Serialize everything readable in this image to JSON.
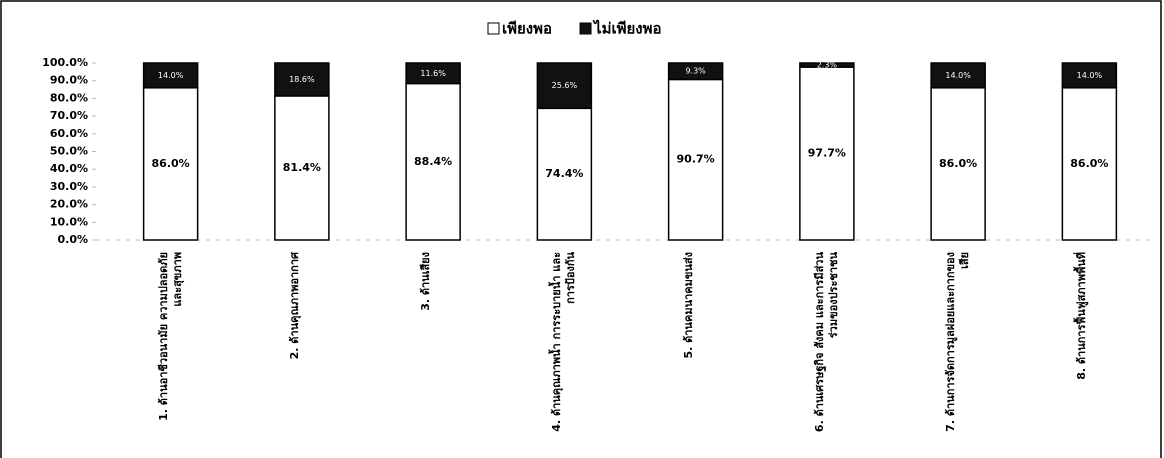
{
  "chart_data": {
    "type": "stacked_bar_100",
    "categories": [
      "1. ด้านอาชีวอนามัย ความปลอดภัย และสุขภาพ",
      "2. ด้านคุณภาพอากาศ",
      "3. ด้านเสียง",
      "4. ด้านคุณภาพน้ำ การระบายน้ำ และการป้องกัน",
      "5. ด้านคมนาคมขนส่ง",
      "6. ด้านเศรษฐกิจ สังคม และการมีส่วนร่วมของประชาชน",
      "7. ด้านการจัดการมูลฝอยและกากของเสีย",
      "8. ด้านการฟื้นฟูสภาพพื้นที่"
    ],
    "series": [
      {
        "name": "เพียงพอ",
        "color": "#ffffff",
        "values": [
          86.0,
          81.4,
          88.4,
          74.4,
          90.7,
          97.7,
          86.0,
          86.0
        ],
        "value_labels": [
          "86.0%",
          "81.4%",
          "88.4%",
          "74.4%",
          "90.7%",
          "97.7%",
          "86.0%",
          "86.0%"
        ]
      },
      {
        "name": "ไม่เพียงพอ",
        "color": "#111111",
        "values": [
          14.0,
          18.6,
          11.6,
          25.6,
          9.3,
          2.3,
          14.0,
          14.0
        ],
        "value_labels": [
          "14.0%",
          "18.6%",
          "11.6%",
          "25.6%",
          "9.3%",
          "2.3%",
          "14.0%",
          "14.0%"
        ]
      }
    ],
    "ylim": [
      0,
      100
    ],
    "yticks": [
      {
        "value": 0,
        "label": "0.0%"
      },
      {
        "value": 10,
        "label": "10.0%"
      },
      {
        "value": 20,
        "label": "20.0%"
      },
      {
        "value": 30,
        "label": "30.0%"
      },
      {
        "value": 40,
        "label": "40.0%"
      },
      {
        "value": 50,
        "label": "50.0%"
      },
      {
        "value": 60,
        "label": "60.0%"
      },
      {
        "value": 70,
        "label": "70.0%"
      },
      {
        "value": 80,
        "label": "80.0%"
      },
      {
        "value": 90,
        "label": "90.0%"
      },
      {
        "value": 100,
        "label": "100.0%"
      }
    ],
    "legend": "top"
  }
}
